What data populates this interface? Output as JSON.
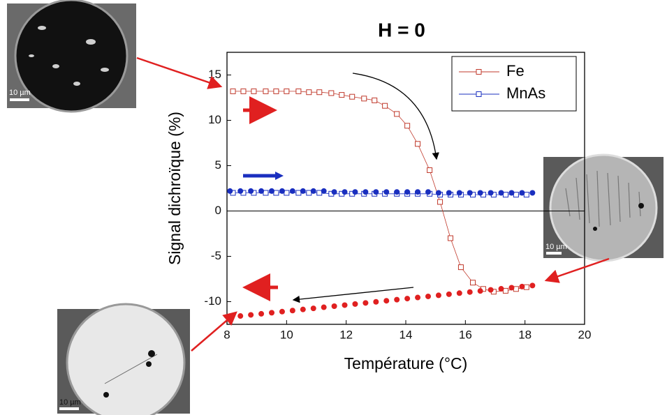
{
  "chart_data": {
    "type": "scatter",
    "title": "H = 0",
    "x_label": "Température (°C)",
    "y_label": "Signal dichroïque (%)",
    "xlim": [
      8,
      20
    ],
    "ylim": [
      -12.5,
      17.5
    ],
    "xticks": [
      8,
      10,
      12,
      14,
      16,
      18,
      20
    ],
    "yticks": [
      -10,
      -5,
      0,
      5,
      10,
      15
    ],
    "legend": "upper right",
    "series": [
      {
        "name": "Fe",
        "color": "#c0392b",
        "marker": "open",
        "connect": true,
        "x": [
          8.2,
          8.55,
          8.9,
          9.3,
          9.65,
          10.0,
          10.4,
          10.75,
          11.1,
          11.5,
          11.85,
          12.2,
          12.6,
          12.95,
          13.3,
          13.7,
          14.05,
          14.4,
          14.8,
          15.15,
          15.5,
          15.85,
          16.25,
          16.6,
          16.95,
          17.35,
          17.7,
          18.05
        ],
        "values": [
          13.2,
          13.2,
          13.2,
          13.2,
          13.2,
          13.2,
          13.2,
          13.1,
          13.1,
          13.0,
          12.8,
          12.6,
          12.4,
          12.2,
          11.6,
          10.7,
          9.4,
          7.4,
          4.5,
          1.0,
          -3.0,
          -6.2,
          -7.9,
          -8.6,
          -8.9,
          -8.8,
          -8.6,
          -8.4
        ]
      },
      {
        "name": "MnAs",
        "color": "#1a2fbf",
        "marker": "open",
        "connect": true,
        "x": [
          8.2,
          8.55,
          8.9,
          9.3,
          9.65,
          10.0,
          10.4,
          10.75,
          11.1,
          11.5,
          11.85,
          12.2,
          12.6,
          12.95,
          13.3,
          13.7,
          14.05,
          14.4,
          14.8,
          15.15,
          15.5,
          15.85,
          16.25,
          16.6,
          16.95,
          17.35,
          17.7,
          18.05
        ],
        "values": [
          2.0,
          2.0,
          2.0,
          2.0,
          2.0,
          2.0,
          2.0,
          2.0,
          2.0,
          1.9,
          1.9,
          1.9,
          1.9,
          1.9,
          1.9,
          1.9,
          1.9,
          1.9,
          1.9,
          1.8,
          1.8,
          1.8,
          1.8,
          1.8,
          1.8,
          1.8,
          1.8,
          1.8
        ]
      },
      {
        "color": "#e02020",
        "marker": "filled",
        "x": [
          8.1,
          8.45,
          8.8,
          9.15,
          9.5,
          9.85,
          10.2,
          10.55,
          10.9,
          11.25,
          11.6,
          11.95,
          12.3,
          12.65,
          13,
          13.35,
          13.7,
          14.05,
          14.4,
          14.75,
          15.1,
          15.45,
          15.8,
          16.15,
          16.5,
          16.85,
          17.2,
          17.55,
          17.9,
          18.25
        ],
        "values": [
          -11.7,
          -11.58,
          -11.46,
          -11.34,
          -11.22,
          -11.1,
          -10.98,
          -10.86,
          -10.74,
          -10.62,
          -10.5,
          -10.38,
          -10.26,
          -10.14,
          -10.02,
          -9.9,
          -9.78,
          -9.66,
          -9.54,
          -9.42,
          -9.3,
          -9.18,
          -9.06,
          -8.94,
          -8.82,
          -8.7,
          -8.58,
          -8.46,
          -8.34,
          -8.22
        ]
      },
      {
        "color": "#1a2fbf",
        "marker": "filled",
        "x": [
          8.1,
          8.45,
          8.8,
          9.15,
          9.5,
          9.85,
          10.2,
          10.55,
          10.9,
          11.25,
          11.6,
          11.95,
          12.3,
          12.65,
          13,
          13.35,
          13.7,
          14.05,
          14.4,
          14.75,
          15.1,
          15.45,
          15.8,
          16.15,
          16.5,
          16.85,
          17.2,
          17.55,
          17.9,
          18.25
        ],
        "values": [
          2.2,
          2.2,
          2.2,
          2.2,
          2.2,
          2.2,
          2.2,
          2.2,
          2.2,
          2.2,
          2.1,
          2.1,
          2.1,
          2.1,
          2.1,
          2.1,
          2.1,
          2.1,
          2.1,
          2.1,
          2.0,
          2.0,
          2.0,
          2.0,
          2.0,
          2.0,
          2.0,
          2.0,
          2.0,
          2.0
        ]
      }
    ]
  },
  "insets": [
    {
      "scale_label": "10 µm"
    },
    {
      "scale_label": "10 µm"
    },
    {
      "scale_label": "10 µm"
    }
  ]
}
